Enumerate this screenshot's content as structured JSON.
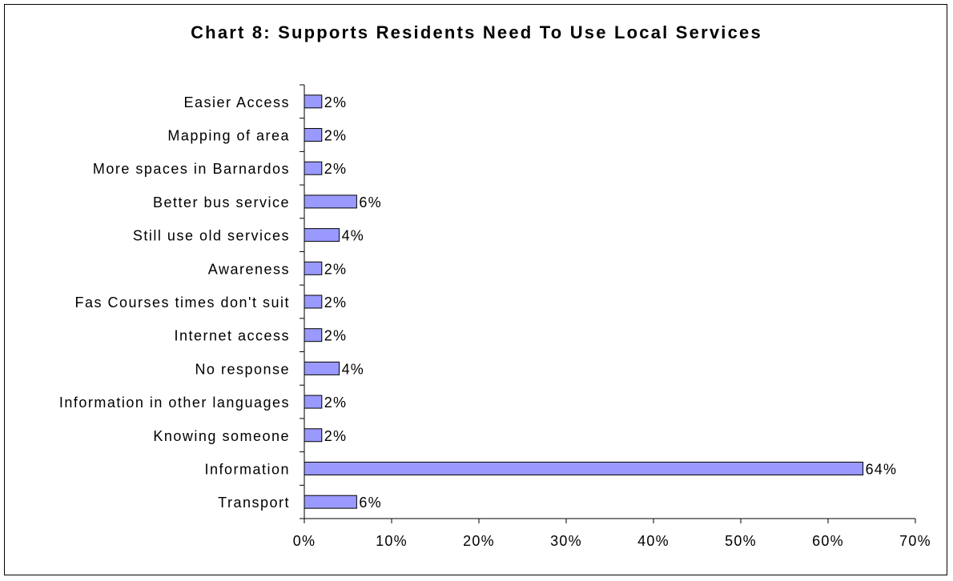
{
  "colors": {
    "bar_fill": "#9999ff",
    "bar_stroke": "#000000",
    "axis": "#000000"
  },
  "chart_data": {
    "type": "bar",
    "orientation": "horizontal",
    "title": "Chart 8: Supports Residents Need To Use Local Services",
    "categories": [
      "Easier Access",
      "Mapping of area",
      "More spaces in Barnardos",
      "Better bus service",
      "Still use old services",
      "Awareness",
      "Fas Courses times don't suit",
      "Internet access",
      "No response",
      "Information in other languages",
      "Knowing someone",
      "Information",
      "Transport"
    ],
    "values": [
      2,
      2,
      2,
      6,
      4,
      2,
      2,
      2,
      4,
      2,
      2,
      64,
      6
    ],
    "value_labels": [
      "2%",
      "2%",
      "2%",
      "6%",
      "4%",
      "2%",
      "2%",
      "2%",
      "4%",
      "2%",
      "2%",
      "64%",
      "6%"
    ],
    "xlim": [
      0,
      70
    ],
    "x_ticks": [
      0,
      10,
      20,
      30,
      40,
      50,
      60,
      70
    ],
    "x_tick_labels": [
      "0%",
      "10%",
      "20%",
      "30%",
      "40%",
      "50%",
      "60%",
      "70%"
    ],
    "xlabel": "",
    "ylabel": "",
    "grid": false,
    "legend": "none"
  }
}
